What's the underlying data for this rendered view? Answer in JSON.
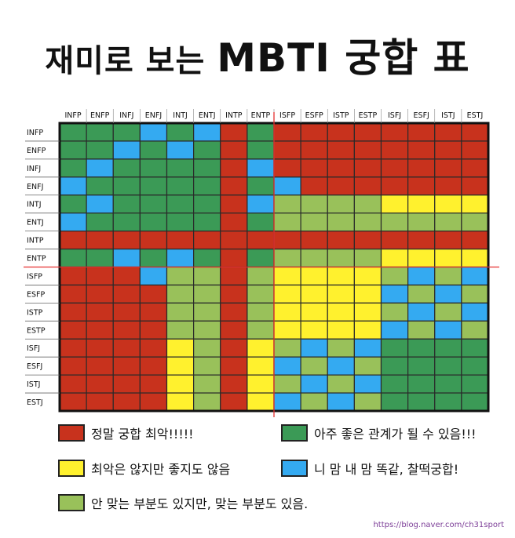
{
  "title": "재미로 보는",
  "title_emph": "MBTI 궁합 표",
  "source": "https://blog.naver.com/ch31sport",
  "colors": {
    "R": "#c8321d",
    "G": "#3b9a56",
    "Y": "#fff12e",
    "B": "#34aaf1",
    "L": "#99c15a"
  },
  "legend": [
    {
      "code": "R",
      "label": "정말 궁합 최악!!!!!"
    },
    {
      "code": "G",
      "label": "아주 좋은 관계가 될 수 있음!!!"
    },
    {
      "code": "Y",
      "label": "최악은 않지만 좋지도 않음"
    },
    {
      "code": "B",
      "label": "니 맘 내 맘 똑같, 찰떡궁합!"
    },
    {
      "code": "L",
      "label": "안 맞는 부분도 있지만, 맞는 부분도 있음."
    }
  ],
  "chart_data": {
    "type": "heatmap",
    "columns": [
      "INFP",
      "ENFP",
      "INFJ",
      "ENFJ",
      "INTJ",
      "ENTJ",
      "INTP",
      "ENTP",
      "ISFP",
      "ESFP",
      "ISTP",
      "ESTP",
      "ISFJ",
      "ESFJ",
      "ISTJ",
      "ESTJ"
    ],
    "rows": [
      "INFP",
      "ENFP",
      "INFJ",
      "ENFJ",
      "INTJ",
      "ENTJ",
      "INTP",
      "ENTP",
      "ISFP",
      "ESFP",
      "ISTP",
      "ESTP",
      "ISFJ",
      "ESFJ",
      "ISTJ",
      "ESTJ"
    ],
    "cells": [
      [
        "G",
        "G",
        "G",
        "B",
        "G",
        "B",
        "R",
        "G",
        "R",
        "R",
        "R",
        "R",
        "R",
        "R",
        "R",
        "R"
      ],
      [
        "G",
        "G",
        "B",
        "G",
        "B",
        "G",
        "R",
        "G",
        "R",
        "R",
        "R",
        "R",
        "R",
        "R",
        "R",
        "R"
      ],
      [
        "G",
        "B",
        "G",
        "G",
        "G",
        "G",
        "R",
        "B",
        "R",
        "R",
        "R",
        "R",
        "R",
        "R",
        "R",
        "R"
      ],
      [
        "B",
        "G",
        "G",
        "G",
        "G",
        "G",
        "R",
        "G",
        "B",
        "R",
        "R",
        "R",
        "R",
        "R",
        "R",
        "R"
      ],
      [
        "G",
        "B",
        "G",
        "G",
        "G",
        "G",
        "R",
        "B",
        "L",
        "L",
        "L",
        "L",
        "Y",
        "Y",
        "Y",
        "Y"
      ],
      [
        "B",
        "G",
        "G",
        "G",
        "G",
        "G",
        "R",
        "G",
        "L",
        "L",
        "L",
        "L",
        "L",
        "L",
        "L",
        "L"
      ],
      [
        "R",
        "R",
        "R",
        "R",
        "R",
        "R",
        "R",
        "R",
        "R",
        "R",
        "R",
        "R",
        "R",
        "R",
        "R",
        "R"
      ],
      [
        "G",
        "G",
        "B",
        "G",
        "B",
        "G",
        "R",
        "G",
        "L",
        "L",
        "L",
        "L",
        "Y",
        "Y",
        "Y",
        "Y"
      ],
      [
        "R",
        "R",
        "R",
        "B",
        "L",
        "L",
        "R",
        "L",
        "Y",
        "Y",
        "Y",
        "Y",
        "L",
        "B",
        "L",
        "B"
      ],
      [
        "R",
        "R",
        "R",
        "R",
        "L",
        "L",
        "R",
        "L",
        "Y",
        "Y",
        "Y",
        "Y",
        "B",
        "L",
        "B",
        "L"
      ],
      [
        "R",
        "R",
        "R",
        "R",
        "L",
        "L",
        "R",
        "L",
        "Y",
        "Y",
        "Y",
        "Y",
        "L",
        "B",
        "L",
        "B"
      ],
      [
        "R",
        "R",
        "R",
        "R",
        "L",
        "L",
        "R",
        "L",
        "Y",
        "Y",
        "Y",
        "Y",
        "B",
        "L",
        "B",
        "L"
      ],
      [
        "R",
        "R",
        "R",
        "R",
        "Y",
        "L",
        "R",
        "Y",
        "L",
        "B",
        "L",
        "B",
        "G",
        "G",
        "G",
        "G"
      ],
      [
        "R",
        "R",
        "R",
        "R",
        "Y",
        "L",
        "R",
        "Y",
        "B",
        "L",
        "B",
        "L",
        "G",
        "G",
        "G",
        "G"
      ],
      [
        "R",
        "R",
        "R",
        "R",
        "Y",
        "L",
        "R",
        "Y",
        "L",
        "B",
        "L",
        "B",
        "G",
        "G",
        "G",
        "G"
      ],
      [
        "R",
        "R",
        "R",
        "R",
        "Y",
        "L",
        "R",
        "Y",
        "B",
        "L",
        "B",
        "L",
        "G",
        "G",
        "G",
        "G"
      ]
    ]
  }
}
